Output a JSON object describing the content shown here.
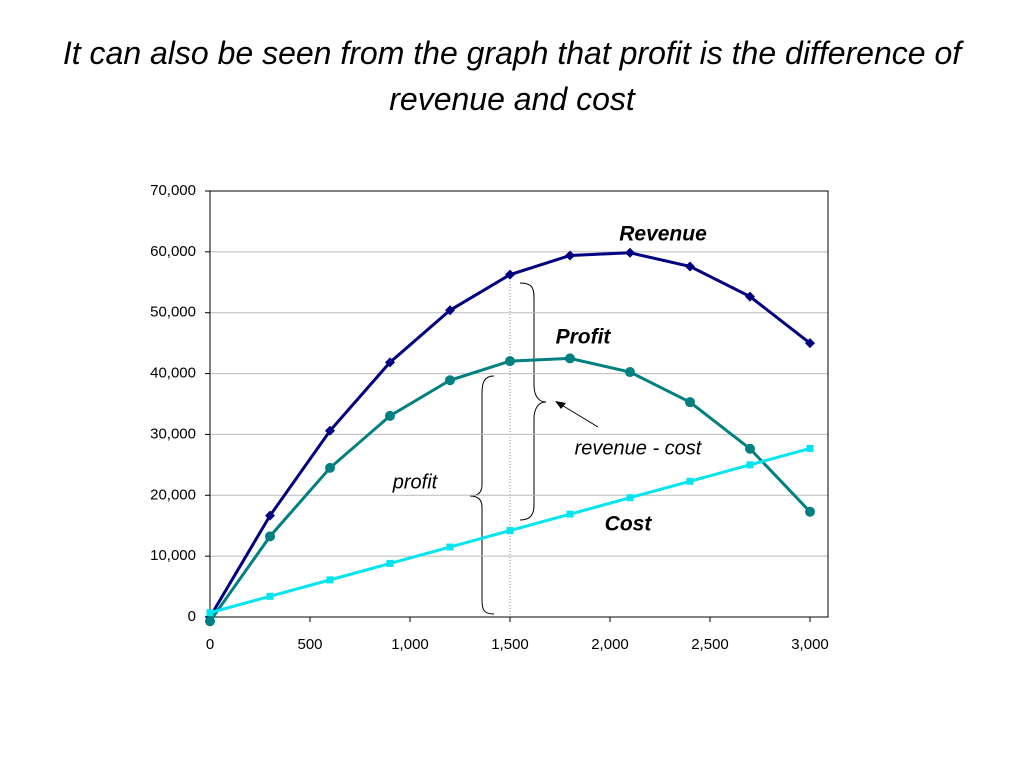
{
  "chart_data": {
    "type": "line",
    "title": "It can also be seen from the graph that profit is the difference of revenue and cost",
    "x": [
      0,
      300,
      600,
      900,
      1200,
      1500,
      1800,
      2100,
      2400,
      2700,
      3000
    ],
    "series": [
      {
        "name": "Revenue",
        "color": "#000080",
        "marker": "diamond",
        "values": [
          0,
          16650,
          30600,
          41850,
          50400,
          56250,
          59400,
          59850,
          57600,
          52650,
          45000
        ]
      },
      {
        "name": "Profit",
        "color": "#008080",
        "marker": "circle",
        "values": [
          -700,
          13250,
          24500,
          33050,
          38900,
          42050,
          42500,
          40250,
          35300,
          27650,
          17300
        ]
      },
      {
        "name": "Cost",
        "color": "#00e5ee",
        "marker": "square",
        "values": [
          700,
          3400,
          6100,
          8800,
          11500,
          14200,
          16900,
          19600,
          22300,
          25000,
          27700
        ]
      }
    ],
    "xlim": [
      0,
      3090
    ],
    "xticks": [
      0,
      500,
      {
        "value": 1000,
        "label": "1,000"
      },
      {
        "value": 1500,
        "label": "1,500"
      },
      {
        "value": 2000,
        "label": "2,000"
      },
      {
        "value": 2500,
        "label": "2,500"
      },
      {
        "value": 3000,
        "label": "3,000"
      }
    ],
    "ylim": [
      0,
      70000
    ],
    "yticks": [
      0,
      {
        "value": 10000,
        "label": "10,000"
      },
      {
        "value": 20000,
        "label": "20,000"
      },
      {
        "value": 30000,
        "label": "30,000"
      },
      {
        "value": 40000,
        "label": "40,000"
      },
      {
        "value": 50000,
        "label": "50,000"
      },
      {
        "value": 60000,
        "label": "60,000"
      },
      {
        "value": 70000,
        "label": "70,000"
      }
    ],
    "grid": true,
    "annotations": [
      "revenue - cost",
      "profit"
    ]
  }
}
